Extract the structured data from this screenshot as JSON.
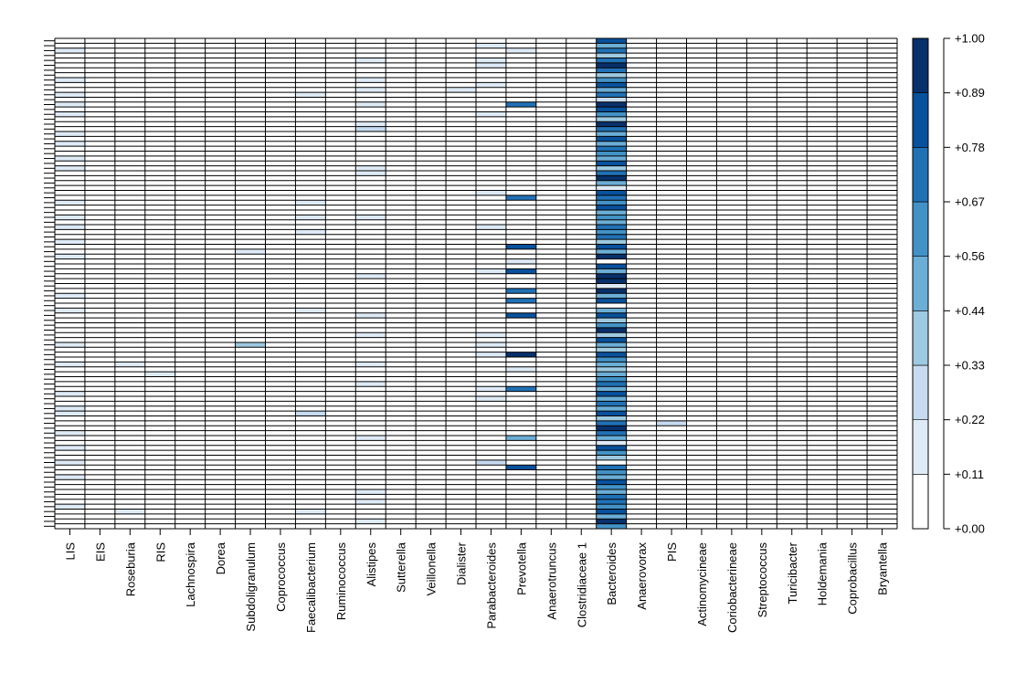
{
  "chart_data": {
    "type": "heatmap",
    "title": "",
    "xlabel": "",
    "ylabel": "",
    "row_count": 100,
    "categories": [
      "LIS",
      "EIS",
      "Roseburia",
      "RIS",
      "Lachnospira",
      "Dorea",
      "Subdoligranulum",
      "Coprococcus",
      "Faecalibacterium",
      "Ruminococcus",
      "Alistipes",
      "Sutterella",
      "Veillonella",
      "Dialister",
      "Parabacteroides",
      "Prevotella",
      "Anaerotruncus",
      "Clostridiaceae 1",
      "Bacteroides",
      "Anaerovorax",
      "PIS",
      "Actinomycineae",
      "Coriobacterineae",
      "Streptococcus",
      "Turicibacter",
      "Holdemania",
      "Coprobacillus",
      "Bryantella"
    ],
    "legend": {
      "labels": [
        "+0.00",
        "+0.11",
        "+0.22",
        "+0.33",
        "+0.44",
        "+0.56",
        "+0.67",
        "+0.78",
        "+0.89",
        "+1.00"
      ],
      "colors": [
        "#FFFFFF",
        "#DEEBF7",
        "#C6DBEF",
        "#9ECAE1",
        "#6BAED6",
        "#4292C6",
        "#2171B5",
        "#08519C",
        "#08306B"
      ],
      "placement": "right"
    },
    "scale": {
      "min": 0.0,
      "max": 1.0,
      "breaks": [
        0.0,
        0.11,
        0.22,
        0.33,
        0.44,
        0.56,
        0.67,
        0.78,
        0.89,
        1.0
      ]
    },
    "cells": {
      "LIS": [
        [
          2,
          0.15
        ],
        [
          6,
          0.1
        ],
        [
          8,
          0.12
        ],
        [
          11,
          0.15
        ],
        [
          13,
          0.12
        ],
        [
          15,
          0.15
        ],
        [
          17,
          0.1
        ],
        [
          19,
          0.12
        ],
        [
          21,
          0.15
        ],
        [
          24,
          0.12
        ],
        [
          26,
          0.15
        ],
        [
          30,
          0.1
        ],
        [
          33,
          0.15
        ],
        [
          36,
          0.12
        ],
        [
          38,
          0.15
        ],
        [
          41,
          0.12
        ],
        [
          44,
          0.2
        ],
        [
          48,
          0.1
        ],
        [
          52,
          0.15
        ],
        [
          55,
          0.12
        ],
        [
          62,
          0.15
        ],
        [
          66,
          0.12
        ],
        [
          69,
          0.1
        ],
        [
          72,
          0.15
        ],
        [
          75,
          0.15
        ],
        [
          76,
          0.12
        ],
        [
          80,
          0.12
        ],
        [
          83,
          0.15
        ],
        [
          86,
          0.12
        ],
        [
          89,
          0.15
        ],
        [
          92,
          0.1
        ],
        [
          95,
          0.12
        ]
      ],
      "Roseburia": [
        [
          66,
          0.2
        ],
        [
          96,
          0.12
        ]
      ],
      "RIS": [
        [
          68,
          0.15
        ]
      ],
      "Subdoligranulum": [
        [
          43,
          0.12
        ],
        [
          62,
          0.35
        ]
      ],
      "Faecalibacterium": [
        [
          11,
          0.12
        ],
        [
          33,
          0.12
        ],
        [
          36,
          0.15
        ],
        [
          39,
          0.12
        ],
        [
          55,
          0.12
        ],
        [
          76,
          0.25
        ],
        [
          96,
          0.12
        ]
      ],
      "Alistipes": [
        [
          4,
          0.12
        ],
        [
          8,
          0.15
        ],
        [
          10,
          0.12
        ],
        [
          13,
          0.12
        ],
        [
          17,
          0.12
        ],
        [
          18,
          0.25
        ],
        [
          26,
          0.15
        ],
        [
          27,
          0.2
        ],
        [
          36,
          0.15
        ],
        [
          48,
          0.12
        ],
        [
          56,
          0.12
        ],
        [
          60,
          0.12
        ],
        [
          66,
          0.2
        ],
        [
          70,
          0.15
        ],
        [
          81,
          0.12
        ],
        [
          92,
          0.15
        ],
        [
          94,
          0.12
        ],
        [
          98,
          0.12
        ]
      ],
      "Dialister": [
        [
          10,
          0.12
        ]
      ],
      "Parabacteroides": [
        [
          1,
          0.12
        ],
        [
          4,
          0.15
        ],
        [
          5,
          0.15
        ],
        [
          9,
          0.12
        ],
        [
          15,
          0.12
        ],
        [
          31,
          0.12
        ],
        [
          38,
          0.12
        ],
        [
          47,
          0.12
        ],
        [
          60,
          0.15
        ],
        [
          62,
          0.12
        ],
        [
          64,
          0.15
        ],
        [
          71,
          0.15
        ],
        [
          73,
          0.12
        ],
        [
          86,
          0.25
        ]
      ],
      "Prevotella": [
        [
          2,
          0.12
        ],
        [
          13,
          0.7
        ],
        [
          32,
          0.78
        ],
        [
          42,
          0.85
        ],
        [
          45,
          0.12
        ],
        [
          47,
          0.8
        ],
        [
          51,
          0.78
        ],
        [
          53,
          0.72
        ],
        [
          56,
          0.8
        ],
        [
          64,
          0.95
        ],
        [
          67,
          0.12
        ],
        [
          71,
          0.72
        ],
        [
          81,
          0.55
        ],
        [
          87,
          0.8
        ]
      ],
      "Bacteroides": [
        [
          0,
          0.85
        ],
        [
          1,
          0.55
        ],
        [
          2,
          0.75
        ],
        [
          3,
          0.35
        ],
        [
          4,
          0.7
        ],
        [
          5,
          0.9
        ],
        [
          6,
          0.75
        ],
        [
          7,
          0.35
        ],
        [
          8,
          0.6
        ],
        [
          9,
          0.85
        ],
        [
          10,
          0.45
        ],
        [
          11,
          0.7
        ],
        [
          12,
          0.3
        ],
        [
          13,
          0.95
        ],
        [
          14,
          0.85
        ],
        [
          15,
          0.6
        ],
        [
          16,
          0.35
        ],
        [
          17,
          0.9
        ],
        [
          18,
          0.7
        ],
        [
          19,
          0.5
        ],
        [
          20,
          0.8
        ],
        [
          21,
          0.55
        ],
        [
          22,
          0.75
        ],
        [
          23,
          0.65
        ],
        [
          24,
          0.45
        ],
        [
          25,
          0.8
        ],
        [
          26,
          0.35
        ],
        [
          27,
          0.7
        ],
        [
          28,
          0.95
        ],
        [
          29,
          0.55
        ],
        [
          30,
          0.2
        ],
        [
          31,
          0.8
        ],
        [
          32,
          0.7
        ],
        [
          33,
          0.6
        ],
        [
          34,
          0.85
        ],
        [
          35,
          0.45
        ],
        [
          36,
          0.65
        ],
        [
          37,
          0.5
        ],
        [
          38,
          0.75
        ],
        [
          39,
          0.6
        ],
        [
          40,
          0.7
        ],
        [
          41,
          0.4
        ],
        [
          42,
          0.8
        ],
        [
          43,
          0.55
        ],
        [
          44,
          0.95
        ],
        [
          45,
          0.05
        ],
        [
          46,
          0.85
        ],
        [
          47,
          0.55
        ],
        [
          48,
          1.0
        ],
        [
          49,
          0.9
        ],
        [
          50,
          0.2
        ],
        [
          51,
          0.95
        ],
        [
          52,
          0.45
        ],
        [
          53,
          0.85
        ],
        [
          54,
          0.05
        ],
        [
          55,
          0.55
        ],
        [
          56,
          0.8
        ],
        [
          57,
          0.4
        ],
        [
          58,
          0.6
        ],
        [
          59,
          0.95
        ],
        [
          60,
          0.4
        ],
        [
          61,
          0.8
        ],
        [
          62,
          0.55
        ],
        [
          63,
          0.35
        ],
        [
          64,
          0.8
        ],
        [
          65,
          0.65
        ],
        [
          66,
          0.45
        ],
        [
          67,
          0.35
        ],
        [
          68,
          0.5
        ],
        [
          69,
          0.6
        ],
        [
          70,
          0.7
        ],
        [
          71,
          0.55
        ],
        [
          72,
          0.85
        ],
        [
          73,
          0.45
        ],
        [
          74,
          0.7
        ],
        [
          75,
          0.55
        ],
        [
          76,
          0.85
        ],
        [
          77,
          0.35
        ],
        [
          78,
          0.75
        ],
        [
          79,
          0.95
        ],
        [
          80,
          0.7
        ],
        [
          81,
          0.55
        ],
        [
          82,
          0.2
        ],
        [
          83,
          0.85
        ],
        [
          84,
          0.6
        ],
        [
          85,
          0.35
        ],
        [
          86,
          0.05
        ],
        [
          87,
          0.75
        ],
        [
          88,
          0.65
        ],
        [
          89,
          0.55
        ],
        [
          90,
          0.8
        ],
        [
          91,
          0.65
        ],
        [
          92,
          0.55
        ],
        [
          93,
          0.7
        ],
        [
          94,
          0.75
        ],
        [
          95,
          0.6
        ],
        [
          96,
          0.8
        ],
        [
          97,
          0.55
        ],
        [
          98,
          0.95
        ],
        [
          99,
          0.65
        ]
      ],
      "PIS": [
        [
          78,
          0.25
        ]
      ]
    }
  }
}
